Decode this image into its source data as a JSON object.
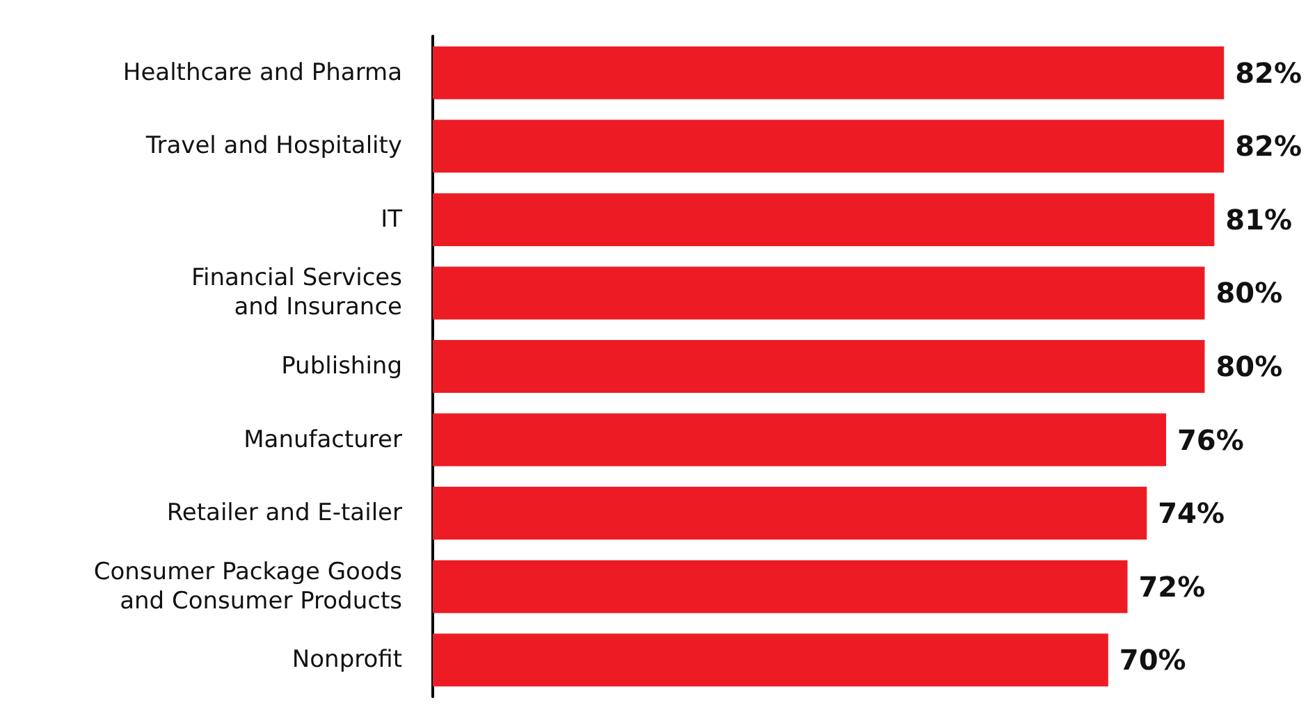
{
  "chart_data": {
    "type": "bar",
    "orientation": "horizontal",
    "categories": [
      "Healthcare and Pharma",
      "Travel and Hospitality",
      "IT",
      "Financial Services\nand Insurance",
      "Publishing",
      "Manufacturer",
      "Retailer and E-tailer",
      "Consumer Package Goods\nand Consumer Products",
      "Nonprofit"
    ],
    "values": [
      82,
      82,
      81,
      80,
      80,
      76,
      74,
      72,
      70
    ],
    "value_labels": [
      "82%",
      "82%",
      "81%",
      "80%",
      "80%",
      "76%",
      "74%",
      "72%",
      "70%"
    ],
    "color": "#ed1c24"
  }
}
